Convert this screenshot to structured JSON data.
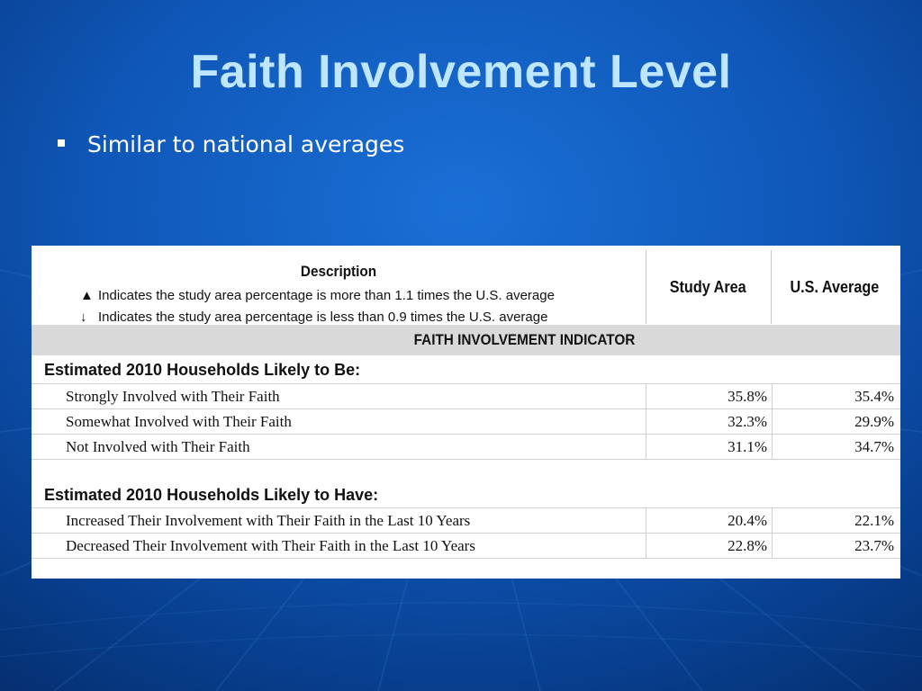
{
  "slide": {
    "title": "Faith Involvement Level",
    "bullet": "Similar to national averages"
  },
  "table": {
    "description_header": "Description",
    "legend": [
      {
        "symbol": "▲",
        "text": "Indicates the study area percentage is more than 1.1 times the U.S. average"
      },
      {
        "symbol": "↓",
        "text": "Indicates the study area percentage is less than 0.9 times the U.S. average"
      }
    ],
    "col_study": "Study Area",
    "col_us": "U.S. Average",
    "indicator": "FAITH INVOLVEMENT INDICATOR",
    "groups": [
      {
        "heading": "Estimated 2010 Households Likely to Be:",
        "rows": [
          {
            "label": "Strongly Involved with Their Faith",
            "study": "35.8%",
            "us": "35.4%"
          },
          {
            "label": "Somewhat Involved with Their Faith",
            "study": "32.3%",
            "us": "29.9%"
          },
          {
            "label": "Not Involved with Their Faith",
            "study": "31.1%",
            "us": "34.7%"
          }
        ]
      },
      {
        "heading": "Estimated 2010 Households Likely to Have:",
        "rows": [
          {
            "label": "Increased Their Involvement with Their Faith in the Last 10 Years",
            "study": "20.4%",
            "us": "22.1%"
          },
          {
            "label": "Decreased Their Involvement with Their Faith in the Last 10 Years",
            "study": "22.8%",
            "us": "23.7%"
          }
        ]
      }
    ]
  }
}
